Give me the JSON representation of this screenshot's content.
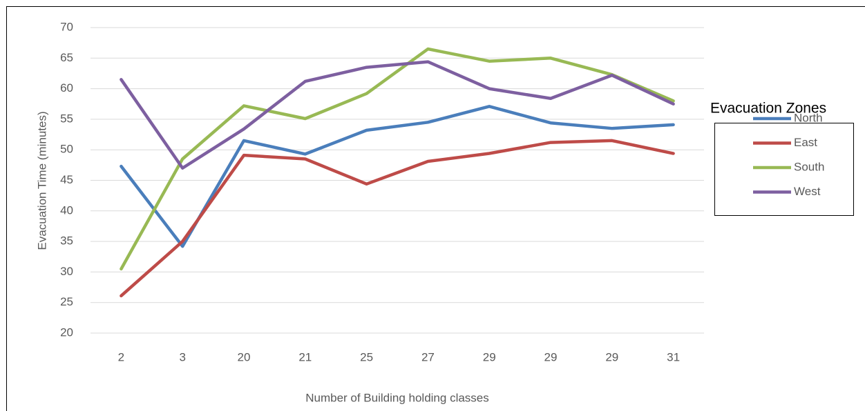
{
  "chart_data": {
    "type": "line",
    "x_label": "Number of Building holding classes",
    "y_label": "Evacuation Time (minutes)",
    "legend_title": "Evacuation Zones",
    "legend": "right",
    "grid": true,
    "categories": [
      "2",
      "3",
      "20",
      "21",
      "25",
      "27",
      "29",
      "29",
      "29",
      "31"
    ],
    "ylim": [
      20,
      70
    ],
    "yticks": [
      20,
      25,
      30,
      35,
      40,
      45,
      50,
      55,
      60,
      65,
      70
    ],
    "series": [
      {
        "name": "North",
        "color": "#4a7ebb",
        "values": [
          47.3,
          34.2,
          51.5,
          49.3,
          53.2,
          54.5,
          57.1,
          54.4,
          53.5,
          54.1
        ]
      },
      {
        "name": "East",
        "color": "#be4b48",
        "values": [
          26.1,
          35,
          49.1,
          48.5,
          44.4,
          48.1,
          49.4,
          51.2,
          51.5,
          49.4
        ]
      },
      {
        "name": "South",
        "color": "#98b954",
        "values": [
          30.5,
          48.5,
          57.2,
          55.1,
          59.2,
          66.5,
          64.5,
          65,
          62.3,
          58
        ]
      },
      {
        "name": "West",
        "color": "#7d5fa0",
        "values": [
          61.5,
          47,
          53.4,
          61.2,
          63.5,
          64.4,
          60,
          58.4,
          62.2,
          57.5
        ]
      }
    ]
  }
}
